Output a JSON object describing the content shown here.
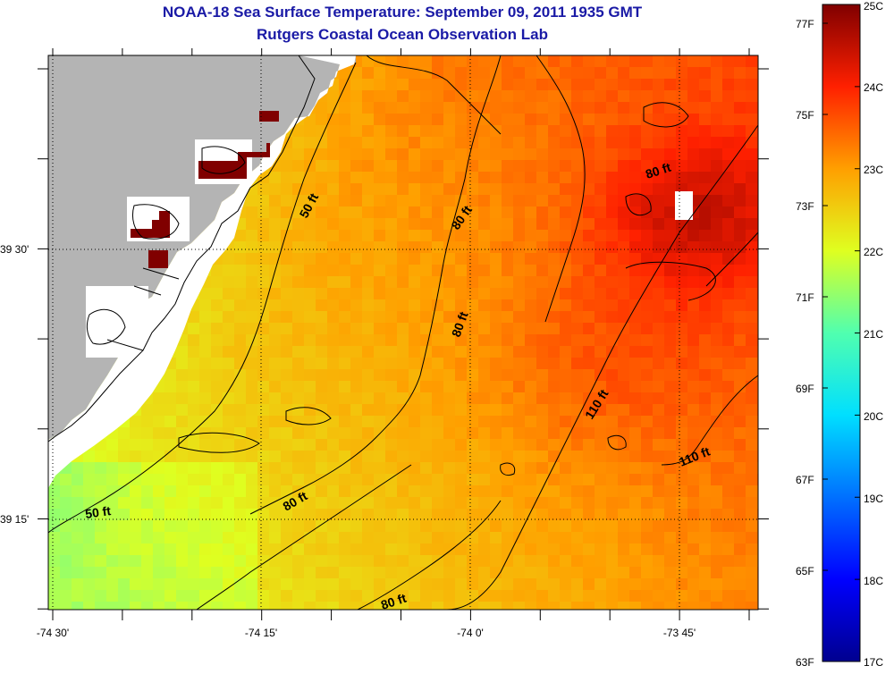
{
  "title": "NOAA-18 Sea Surface Temperature:  September 09, 2011 1935 GMT",
  "subtitle": "Rutgers Coastal Ocean Observation Lab",
  "map": {
    "x_ticks": [
      "-74 30'",
      "-74 15'",
      "-74 0'",
      "-73 45'"
    ],
    "y_ticks": [
      "39 30'",
      "39 15'"
    ],
    "contours": [
      "50 ft",
      "50 ft",
      "80 ft",
      "80 ft",
      "80 ft",
      "80 ft",
      "80 ft",
      "110 ft",
      "110 ft"
    ]
  },
  "colorbar": {
    "fahrenheit": [
      "77F",
      "75F",
      "73F",
      "71F",
      "69F",
      "67F",
      "65F",
      "63F"
    ],
    "celsius": [
      "25C",
      "24C",
      "23C",
      "22C",
      "21C",
      "20C",
      "19C",
      "18C",
      "17C"
    ]
  },
  "colors": {
    "title": "#1a1aa6",
    "land": "#b4b4b4",
    "no_data": "#ffffff",
    "warmest": "#800000",
    "coolest": "#00008f"
  }
}
